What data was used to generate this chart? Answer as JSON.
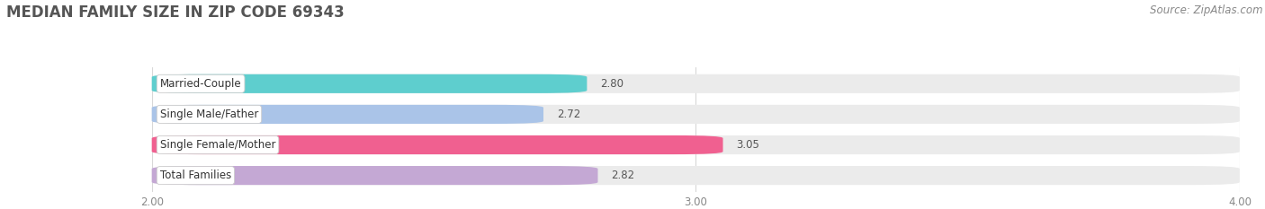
{
  "title": "MEDIAN FAMILY SIZE IN ZIP CODE 69343",
  "source": "Source: ZipAtlas.com",
  "categories": [
    "Married-Couple",
    "Single Male/Father",
    "Single Female/Mother",
    "Total Families"
  ],
  "values": [
    2.8,
    2.72,
    3.05,
    2.82
  ],
  "bar_colors": [
    "#5ecece",
    "#aac4e8",
    "#f06090",
    "#c4a8d4"
  ],
  "bar_bg_color": "#ebebeb",
  "xmin": 2.0,
  "xmax": 4.0,
  "xticks": [
    2.0,
    3.0,
    4.0
  ],
  "xtick_labels": [
    "2.00",
    "3.00",
    "4.00"
  ],
  "background_color": "#ffffff",
  "title_fontsize": 12,
  "label_fontsize": 8.5,
  "value_fontsize": 8.5,
  "source_fontsize": 8.5,
  "bar_height": 0.62,
  "grid_color": "#d8d8d8",
  "label_box_color": "#ffffff",
  "label_box_edge": "#cccccc",
  "tick_color": "#888888",
  "value_color": "#555555",
  "title_color": "#555555"
}
